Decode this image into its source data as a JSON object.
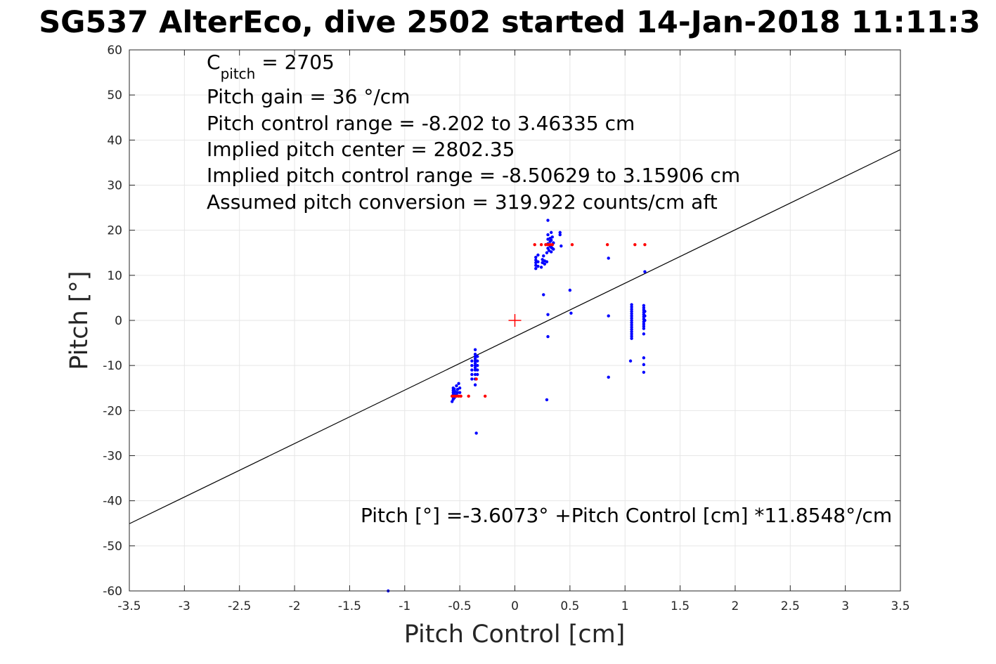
{
  "chart_data": {
    "type": "scatter",
    "title": "SG537 AlterEco, dive 2502 started 14-Jan-2018 11:11:3",
    "xlabel": "Pitch Control [cm]",
    "ylabel": "Pitch [°]",
    "xlim": [
      -3.5,
      3.5
    ],
    "ylim": [
      -60,
      60
    ],
    "xticks": [
      -3.5,
      -3,
      -2.5,
      -2,
      -1.5,
      -1,
      -0.5,
      0,
      0.5,
      1,
      1.5,
      2,
      2.5,
      3,
      3.5
    ],
    "xtick_labels": [
      "-3.5",
      "-3",
      "-2.5",
      "-2",
      "-1.5",
      "-1",
      "-0.5",
      "0",
      "0.5",
      "1",
      "1.5",
      "2",
      "2.5",
      "3",
      "3.5"
    ],
    "yticks": [
      60,
      50,
      40,
      30,
      20,
      10,
      0,
      -10,
      -20,
      -30,
      -40,
      -50,
      -60
    ],
    "ytick_labels": [
      "60",
      "50",
      "40",
      "30",
      "20",
      "10",
      "0",
      "-10",
      "-20",
      "-30",
      "-40",
      "-50",
      "-60"
    ],
    "grid": true,
    "colors": {
      "observed": "#0000ff",
      "flagged": "#ff0000",
      "fit": "#000000",
      "center": "#ff0000",
      "grid": "#e6e6e6",
      "axes": "#262626"
    },
    "fit_line": {
      "intercept": -3.6073,
      "slope": 11.8548,
      "x_range": [
        -3.5,
        3.5
      ]
    },
    "center_marker": {
      "x": 0,
      "y": 0,
      "shape": "plus"
    },
    "annotations": {
      "c_pitch_prefix": "C",
      "c_pitch_sub": "pitch",
      "c_pitch_rest": " = 2705",
      "gain": "Pitch gain = 36 °/cm",
      "range": "Pitch control range = -8.202 to 3.46335 cm",
      "center": "Implied pitch center = 2802.35",
      "implied_range": "Implied pitch control range = -8.50629 to 3.15906 cm",
      "conversion": "Assumed pitch conversion = 319.922 counts/cm aft",
      "equation": "Pitch [°] =-3.6073° +Pitch Control [cm] *11.8548°/cm"
    },
    "series": [
      {
        "color": "blue",
        "points": [
          [
            -0.56,
            -15.0
          ],
          [
            -0.56,
            -15.5
          ],
          [
            -0.56,
            -16.0
          ],
          [
            -0.56,
            -16.5
          ],
          [
            -0.56,
            -17.0
          ],
          [
            -0.56,
            -17.5
          ],
          [
            -0.57,
            -18.0
          ],
          [
            -0.55,
            -15.2
          ],
          [
            -0.55,
            -16.3
          ],
          [
            -0.55,
            -17.2
          ],
          [
            -0.54,
            -15.8
          ],
          [
            -0.53,
            -16.5
          ],
          [
            -0.53,
            -14.5
          ],
          [
            -0.52,
            -16.0
          ],
          [
            -0.52,
            -15.3
          ],
          [
            -0.51,
            -14.0
          ],
          [
            -0.5,
            -15.0
          ],
          [
            -0.5,
            -16.0
          ],
          [
            -0.39,
            -9.0
          ],
          [
            -0.39,
            -10.0
          ],
          [
            -0.39,
            -11.0
          ],
          [
            -0.39,
            -12.0
          ],
          [
            -0.39,
            -13.0
          ],
          [
            -0.36,
            -6.5
          ],
          [
            -0.36,
            -7.5
          ],
          [
            -0.36,
            -8.0
          ],
          [
            -0.36,
            -8.5
          ],
          [
            -0.36,
            -9.0
          ],
          [
            -0.36,
            -9.5
          ],
          [
            -0.36,
            -10.0
          ],
          [
            -0.36,
            -10.5
          ],
          [
            -0.36,
            -11.0
          ],
          [
            -0.36,
            -12.0
          ],
          [
            -0.36,
            -13.0
          ],
          [
            -0.36,
            -14.3
          ],
          [
            -0.34,
            -8.0
          ],
          [
            -0.34,
            -9.0
          ],
          [
            -0.34,
            -10.0
          ],
          [
            -0.34,
            -11.0
          ],
          [
            -0.34,
            -12.0
          ],
          [
            -0.35,
            -25.0
          ],
          [
            -1.15,
            -60.0
          ],
          [
            0.19,
            11.5
          ],
          [
            0.19,
            12.2
          ],
          [
            0.19,
            12.8
          ],
          [
            0.19,
            13.4
          ],
          [
            0.19,
            14.0
          ],
          [
            0.21,
            12.0
          ],
          [
            0.21,
            13.0
          ],
          [
            0.21,
            14.5
          ],
          [
            0.24,
            11.8
          ],
          [
            0.25,
            12.8
          ],
          [
            0.25,
            13.5
          ],
          [
            0.26,
            14.3
          ],
          [
            0.27,
            12.5
          ],
          [
            0.27,
            13.2
          ],
          [
            0.29,
            13.0
          ],
          [
            0.29,
            15.0
          ],
          [
            0.3,
            16.0
          ],
          [
            0.3,
            17.0
          ],
          [
            0.3,
            18.0
          ],
          [
            0.3,
            19.0
          ],
          [
            0.3,
            22.2
          ],
          [
            0.31,
            15.5
          ],
          [
            0.32,
            16.5
          ],
          [
            0.32,
            17.5
          ],
          [
            0.32,
            18.2
          ],
          [
            0.33,
            15.2
          ],
          [
            0.33,
            16.2
          ],
          [
            0.33,
            17.8
          ],
          [
            0.33,
            19.5
          ],
          [
            0.34,
            16.0
          ],
          [
            0.34,
            16.8
          ],
          [
            0.34,
            18.5
          ],
          [
            0.35,
            17.2
          ],
          [
            0.35,
            15.8
          ],
          [
            0.41,
            19.5
          ],
          [
            0.41,
            19.0
          ],
          [
            0.42,
            16.5
          ],
          [
            0.26,
            5.7
          ],
          [
            0.3,
            1.3
          ],
          [
            0.3,
            -3.6
          ],
          [
            0.29,
            -17.6
          ],
          [
            0.5,
            6.7
          ],
          [
            0.51,
            1.6
          ],
          [
            0.85,
            13.8
          ],
          [
            0.85,
            1.0
          ],
          [
            0.85,
            -12.6
          ],
          [
            1.18,
            10.8
          ],
          [
            1.06,
            3.5
          ],
          [
            1.06,
            3.0
          ],
          [
            1.06,
            2.5
          ],
          [
            1.06,
            2.0
          ],
          [
            1.06,
            1.5
          ],
          [
            1.06,
            1.0
          ],
          [
            1.06,
            0.5
          ],
          [
            1.06,
            0.0
          ],
          [
            1.06,
            -0.5
          ],
          [
            1.06,
            -1.0
          ],
          [
            1.06,
            -1.5
          ],
          [
            1.06,
            -2.0
          ],
          [
            1.06,
            -2.5
          ],
          [
            1.06,
            -3.0
          ],
          [
            1.06,
            -3.5
          ],
          [
            1.06,
            -4.0
          ],
          [
            1.05,
            -9.0
          ],
          [
            1.17,
            3.3
          ],
          [
            1.17,
            2.8
          ],
          [
            1.17,
            2.3
          ],
          [
            1.17,
            1.8
          ],
          [
            1.17,
            1.3
          ],
          [
            1.17,
            0.8
          ],
          [
            1.17,
            0.3
          ],
          [
            1.17,
            -0.3
          ],
          [
            1.17,
            -0.8
          ],
          [
            1.17,
            -1.3
          ],
          [
            1.17,
            -1.8
          ],
          [
            1.17,
            -3.0
          ],
          [
            1.17,
            -8.3
          ],
          [
            1.17,
            -9.8
          ],
          [
            1.17,
            -11.5
          ],
          [
            1.18,
            2.0
          ],
          [
            1.18,
            1.0
          ],
          [
            1.18,
            0.0
          ]
        ]
      },
      {
        "color": "red",
        "points": [
          [
            -0.57,
            -16.8
          ],
          [
            -0.55,
            -16.8
          ],
          [
            -0.53,
            -16.8
          ],
          [
            -0.51,
            -16.8
          ],
          [
            -0.49,
            -16.8
          ],
          [
            -0.42,
            -16.8
          ],
          [
            -0.27,
            -16.8
          ],
          [
            -0.35,
            -13.0
          ],
          [
            0.18,
            16.8
          ],
          [
            0.24,
            16.8
          ],
          [
            0.28,
            16.8
          ],
          [
            0.3,
            16.8
          ],
          [
            0.32,
            16.8
          ],
          [
            0.34,
            16.8
          ],
          [
            0.52,
            16.8
          ],
          [
            0.84,
            16.8
          ],
          [
            1.09,
            16.8
          ],
          [
            1.18,
            16.8
          ]
        ]
      }
    ]
  }
}
